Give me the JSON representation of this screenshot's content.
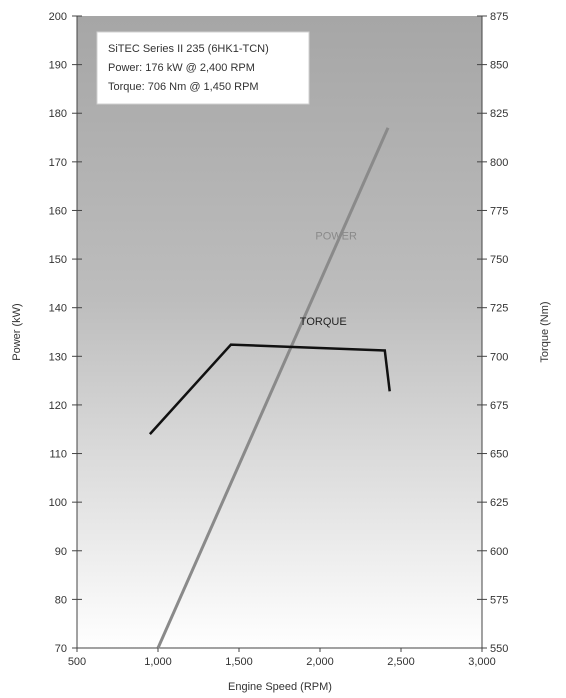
{
  "chart_data": {
    "type": "line",
    "xlabel": "Engine Speed (RPM)",
    "ylabel_left": "Power (kW)",
    "ylabel_right": "Torque (Nm)",
    "xlim": [
      500,
      3000
    ],
    "ylim_left": [
      70,
      200
    ],
    "ylim_right": [
      550,
      875
    ],
    "x_ticks": [
      500,
      1000,
      1500,
      2000,
      2500,
      3000
    ],
    "x_tick_labels": [
      "500",
      "1,000",
      "1,500",
      "2,000",
      "2,500",
      "3,000"
    ],
    "y_left_ticks": [
      70,
      80,
      90,
      100,
      110,
      120,
      130,
      140,
      150,
      160,
      170,
      180,
      190,
      200
    ],
    "y_right_ticks": [
      550,
      575,
      600,
      625,
      650,
      675,
      700,
      725,
      750,
      775,
      800,
      825,
      850,
      875
    ],
    "infobox": [
      "SiTEC Series II 235 (6HK1-TCN)",
      "Power: 176 kW @ 2,400 RPM",
      "Torque: 706 Nm @ 1,450 RPM"
    ],
    "series": [
      {
        "name": "POWER",
        "axis": "left",
        "color": "#8a8a8a",
        "x": [
          1000,
          2420
        ],
        "y": [
          70,
          177
        ]
      },
      {
        "name": "TORQUE",
        "axis": "right",
        "color": "#111111",
        "x": [
          950,
          1450,
          2400,
          2430
        ],
        "y": [
          660,
          706,
          703,
          682
        ]
      }
    ],
    "background_gradient": [
      "#a6a6a6",
      "#ffffff"
    ],
    "grid": false
  }
}
